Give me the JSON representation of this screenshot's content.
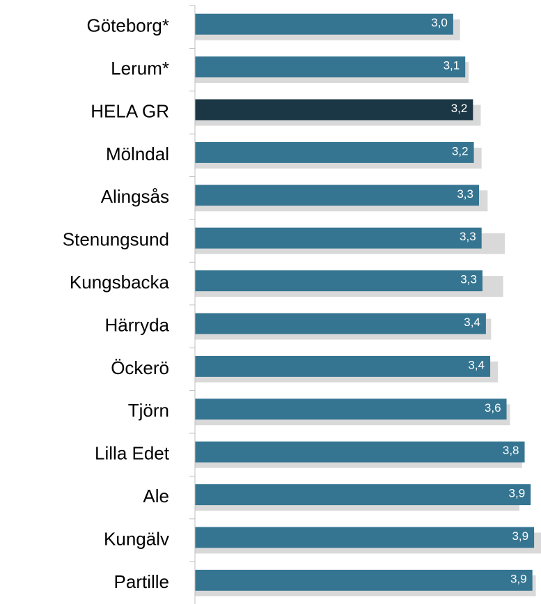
{
  "chart_data": {
    "type": "hbar",
    "categories": [
      "Göteborg*",
      "Lerum*",
      "HELA GR",
      "Mölndal",
      "Alingsås",
      "Stenungsund",
      "Kungsbacka",
      "Härryda",
      "Öckerö",
      "Tjörn",
      "Lilla Edet",
      "Ale",
      "Kungälv",
      "Partille"
    ],
    "series": [
      {
        "color": "#d9d9d9",
        "values": [
          3.08,
          3.18,
          3.32,
          3.33,
          3.4,
          3.6,
          3.58,
          3.44,
          3.52,
          3.66,
          3.8,
          3.77,
          4.02,
          3.96
        ]
      },
      {
        "color": "#367591",
        "colors": [
          "#367591",
          "#367591",
          "#1b3644",
          "#367591",
          "#367591",
          "#367591",
          "#367591",
          "#367591",
          "#367591",
          "#367591",
          "#367591",
          "#367591",
          "#367591",
          "#367591"
        ],
        "values": [
          3.0,
          3.14,
          3.23,
          3.24,
          3.3,
          3.33,
          3.34,
          3.38,
          3.43,
          3.62,
          3.83,
          3.9,
          3.94,
          3.92
        ],
        "value_labels": [
          "3,0",
          "3,1",
          "3,2",
          "3,2",
          "3,3",
          "3,3",
          "3,3",
          "3,4",
          "3,4",
          "3,6",
          "3,8",
          "3,9",
          "3,9",
          "3,9"
        ]
      }
    ],
    "xlim": [
      0,
      4.02
    ]
  }
}
